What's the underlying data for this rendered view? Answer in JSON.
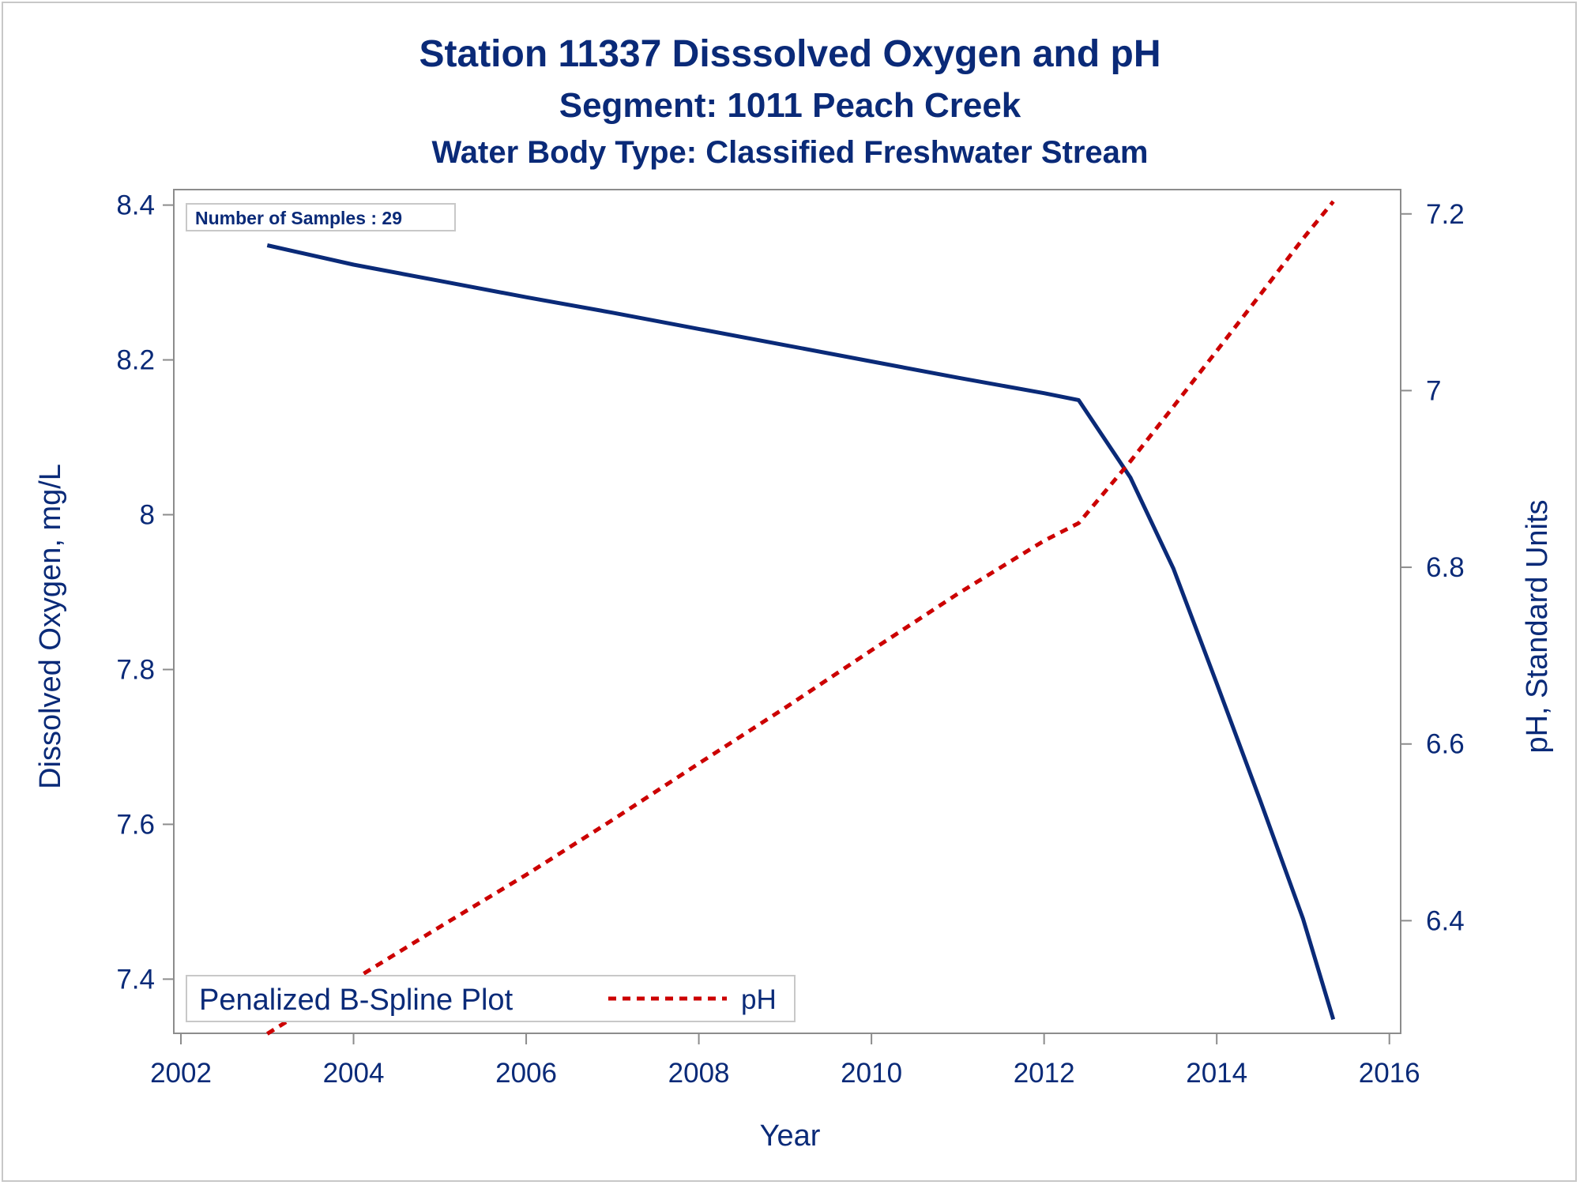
{
  "title": "Station 11337    Disssolved Oxygen and pH",
  "subtitle": "Segment: 1011  Peach Creek",
  "subtitle2": "Water Body Type: Classified Freshwater Stream",
  "inset_label": "Number of Samples : 29",
  "legend_title": "Penalized B-Spline Plot",
  "colors": {
    "text": "#0a2a78",
    "do_line": "#0a2a78",
    "ph_line": "#cc0000",
    "axis": "#8c8c8c"
  },
  "chart_data": {
    "type": "line",
    "xlabel": "Year",
    "ylabel": "Dissolved Oxygen, mg/L",
    "y2label": "pH, Standard Units",
    "xlim": [
      2002,
      2016
    ],
    "ylim": [
      7.33,
      8.42
    ],
    "y2lim": [
      6.2725,
      7.2275
    ],
    "x_ticks": [
      "2002",
      "2004",
      "2006",
      "2008",
      "2010",
      "2012",
      "2014",
      "2016"
    ],
    "y_ticks": [
      "7.4",
      "7.6",
      "7.8",
      "8",
      "8.2",
      "8.4"
    ],
    "y2_ticks": [
      "6.4",
      "6.6",
      "6.8",
      "7",
      "7.2"
    ],
    "series": [
      {
        "axis": "left",
        "style": "solid",
        "color": "#0a2a78",
        "x": [
          2003.0,
          2004.0,
          2005.0,
          2006.0,
          2007.0,
          2008.0,
          2009.0,
          2010.0,
          2011.0,
          2012.0,
          2012.4,
          2013.0,
          2013.5,
          2014.0,
          2014.5,
          2015.0,
          2015.35
        ],
        "y": [
          8.348,
          8.323,
          8.302,
          8.281,
          8.261,
          8.24,
          8.219,
          8.198,
          8.177,
          8.157,
          8.148,
          8.048,
          7.93,
          7.782,
          7.632,
          7.478,
          7.348
        ]
      },
      {
        "name": "pH",
        "axis": "right",
        "style": "dashed",
        "color": "#cc0000",
        "x": [
          2003.0,
          2004.0,
          2005.0,
          2006.0,
          2007.0,
          2008.0,
          2009.0,
          2010.0,
          2011.0,
          2012.0,
          2012.4,
          2013.0,
          2013.5,
          2014.0,
          2014.5,
          2015.0,
          2015.35
        ],
        "y": [
          6.272,
          6.333,
          6.393,
          6.452,
          6.514,
          6.578,
          6.641,
          6.706,
          6.77,
          6.83,
          6.85,
          6.92,
          6.982,
          7.045,
          7.108,
          7.172,
          7.214
        ]
      }
    ]
  }
}
